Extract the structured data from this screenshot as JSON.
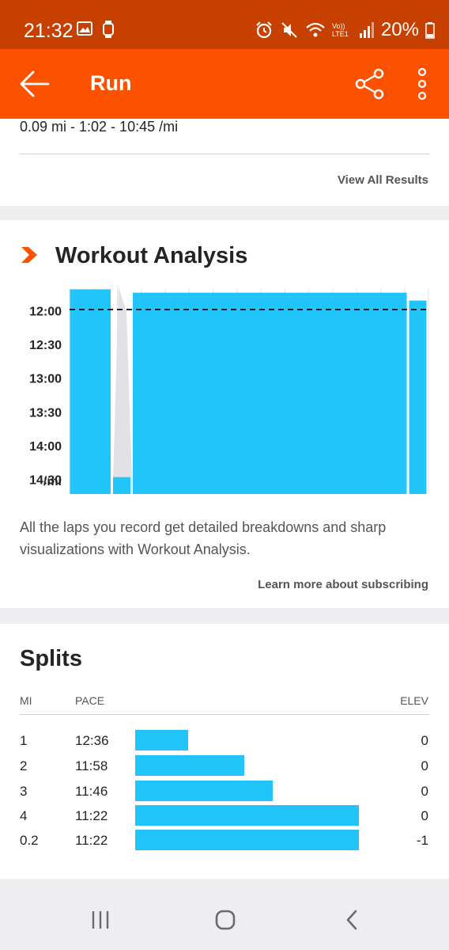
{
  "status_bar": {
    "time": "21:32",
    "network_label": "Vo)) LTE1",
    "battery": "20%"
  },
  "toolbar": {
    "title": "Run"
  },
  "laps_card": {
    "lap_summary": "0.09 mi - 1:02 - 10:45 /mi",
    "view_all_label": "View All Results"
  },
  "workout_analysis": {
    "title": "Workout Analysis",
    "description": "All the laps you record get detailed breakdowns and sharp visualizations with Workout Analysis.",
    "learn_more_label": "Learn more about subscribing",
    "accent_color": "#fc5200"
  },
  "chart_data": {
    "type": "bar",
    "ylabel": "/mi",
    "y_ticks": [
      "12:00",
      "12:30",
      "13:00",
      "13:30",
      "14:00",
      "14:30"
    ],
    "y_tick_seconds": [
      720,
      750,
      780,
      810,
      840,
      870
    ],
    "ylim_seconds": [
      700,
      883
    ],
    "reversed_y": true,
    "average_pace_seconds": 719,
    "bar_color": "#22c4fc",
    "laps": [
      {
        "pace_seconds": 701,
        "width_fraction": 0.12
      },
      {
        "pace_seconds": 868,
        "width_fraction": 0.055
      },
      {
        "pace_seconds": 704,
        "width_fraction": 0.77
      },
      {
        "pace_seconds": 711,
        "width_fraction": 0.055
      }
    ]
  },
  "splits": {
    "title": "Splits",
    "headers": {
      "mi": "MI",
      "pace": "PACE",
      "elev": "ELEV"
    },
    "bar_color": "#22c4fc",
    "rows": [
      {
        "mi": "1",
        "pace": "12:36",
        "pace_seconds": 756,
        "elev": "0"
      },
      {
        "mi": "2",
        "pace": "11:58",
        "pace_seconds": 718,
        "elev": "0"
      },
      {
        "mi": "3",
        "pace": "11:46",
        "pace_seconds": 706,
        "elev": "0"
      },
      {
        "mi": "4",
        "pace": "11:22",
        "pace_seconds": 682,
        "elev": "0"
      },
      {
        "mi": "0.2",
        "pace": "11:22",
        "pace_seconds": 682,
        "elev": "-1"
      }
    ]
  },
  "icons": {
    "back": "back-arrow-icon",
    "share": "share-icon",
    "more": "more-vertical-icon",
    "workout_analysis": "chevron-badge-icon",
    "nav_recents": "recents-icon",
    "nav_home": "home-icon",
    "nav_back": "nav-back-icon"
  }
}
